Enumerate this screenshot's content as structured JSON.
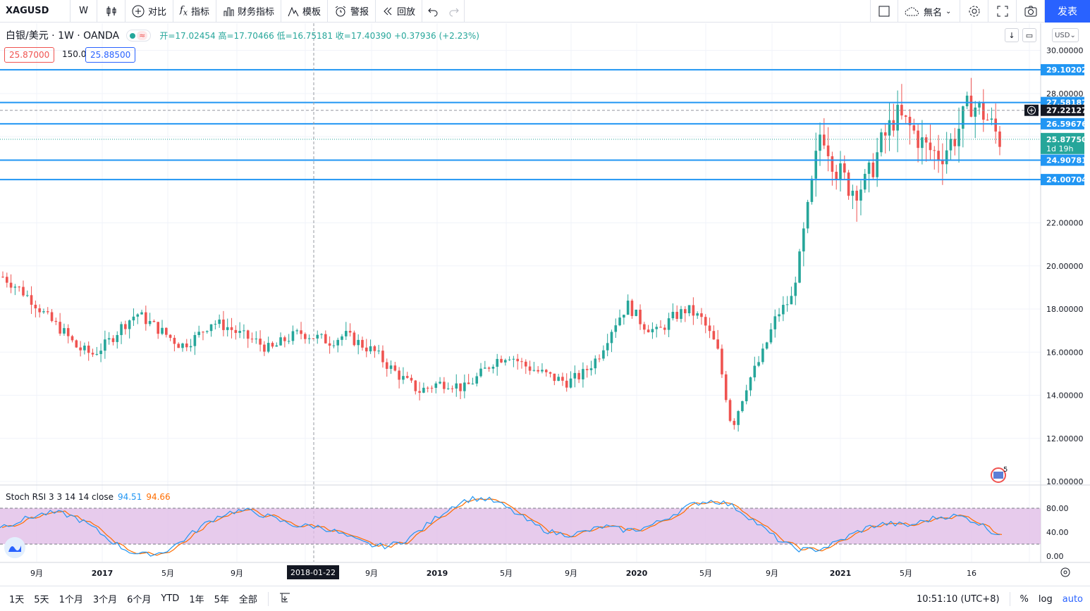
{
  "toolbar": {
    "symbol": "XAGUSD",
    "interval": "W",
    "compare": "对比",
    "indicators": "指标",
    "financials": "财务指标",
    "templates": "模板",
    "alerts": "警报",
    "replay": "回放",
    "layout_name": "無名",
    "publish": "发表"
  },
  "legend": {
    "title": "白银/美元 · 1W · OANDA",
    "open": "开=17.02454",
    "high": "高=17.70466",
    "low": "低=16.75181",
    "close": "收=17.40390",
    "change": "+0.37936 (+2.23%)"
  },
  "trade": {
    "sell": "25.87000",
    "spread": "150.0",
    "buy": "25.88500"
  },
  "currency": "USD",
  "stoch": {
    "label": "Stoch RSI 3 3 14 14 close",
    "k": "94.51",
    "d": "94.66"
  },
  "colors": {
    "up": "#26a69a",
    "down": "#ef5350",
    "line": "#2196f3",
    "k": "#2196f3",
    "d": "#ff6d00",
    "band": "#e1bee7"
  },
  "price_axis": [
    "30.00000",
    "28.00000",
    "22.00000",
    "20.00000",
    "18.00000",
    "16.00000",
    "14.00000",
    "12.00000",
    "10.00000"
  ],
  "horizontal_lines": [
    29.10202,
    27.58187,
    26.59676,
    24.90781,
    24.00704
  ],
  "line_labels": [
    "29.10202",
    "27.58187",
    "26.59676",
    "24.90781",
    "24.00704"
  ],
  "crosshair_price": "27.22127",
  "last_price": {
    "value": "25.87750",
    "countdown": "1d 19h"
  },
  "stoch_axis": [
    "80.00",
    "40.00",
    "0.00"
  ],
  "time_axis": [
    "9月",
    "2017",
    "5月",
    "9月",
    "5月",
    "9月",
    "2019",
    "5月",
    "9月",
    "2020",
    "5月",
    "9月",
    "2021",
    "5月",
    "16"
  ],
  "crosshair_date": "2018-01-22",
  "event_badge": "5",
  "ranges": [
    "1天",
    "5天",
    "1个月",
    "3个月",
    "6个月",
    "YTD",
    "1年",
    "5年",
    "全部"
  ],
  "clock": "10:51:10 (UTC+8)",
  "scale_options": [
    "%",
    "log",
    "auto"
  ],
  "chart_data": {
    "type": "candlestick",
    "y_range": [
      10,
      31
    ],
    "series": [
      {
        "name": "weekly_close_path",
        "values": [
          19.5,
          19.0,
          18.4,
          17.6,
          17.0,
          16.2,
          15.9,
          16.4,
          17.2,
          17.8,
          17.3,
          16.8,
          16.3,
          16.7,
          17.4,
          17.2,
          16.8,
          16.5,
          16.1,
          16.6,
          16.9,
          16.7,
          16.5,
          16.8,
          16.4,
          16.0,
          15.3,
          14.7,
          14.2,
          14.5,
          14.6,
          14.3,
          14.9,
          15.6,
          15.9,
          15.4,
          15.1,
          14.8,
          14.6,
          15.0,
          15.8,
          17.2,
          18.2,
          17.3,
          16.9,
          17.6,
          18.0,
          17.5,
          16.2,
          12.5,
          14.5,
          15.8,
          17.7,
          18.5,
          22.0,
          26.5,
          24.5,
          23.6,
          23.8,
          25.6,
          27.0,
          26.4,
          25.5,
          25.1,
          26.0,
          27.6,
          27.0,
          25.87
        ]
      }
    ],
    "stoch_k_end": 94.51,
    "stoch_d_end": 94.66
  }
}
